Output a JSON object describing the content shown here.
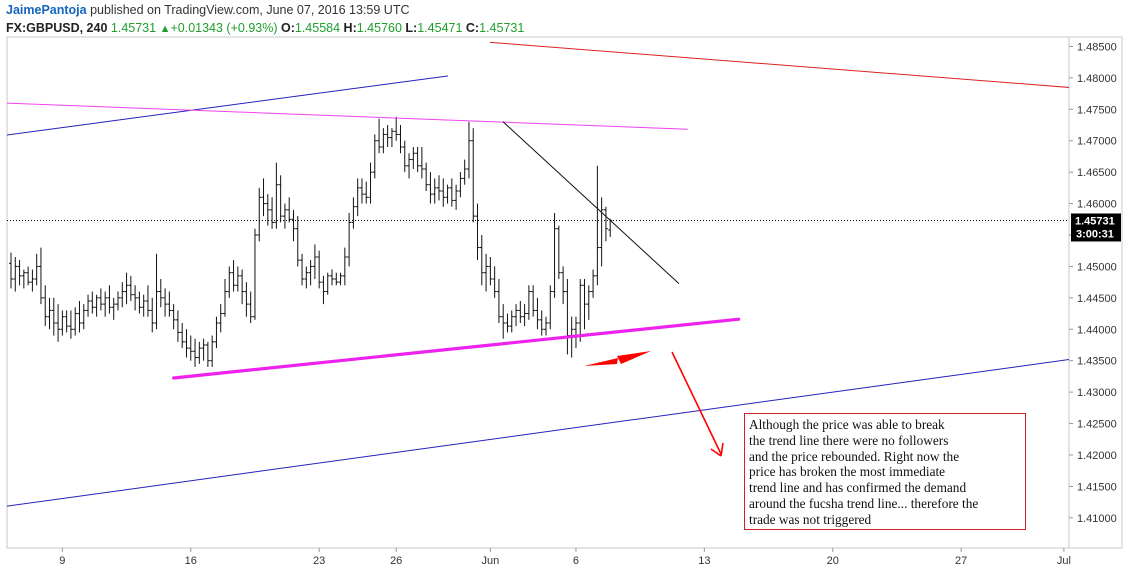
{
  "header": {
    "author": "JaimePantoja",
    "published": " published on TradingView.com, June 07, 2016 13:59 UTC",
    "symbol": "FX:GBPUSD, 240",
    "last": "1.45731",
    "change": "+0.01343 (+0.93%)",
    "o_label": "O:",
    "o": "1.45584",
    "h_label": "H:",
    "h": "1.45760",
    "l_label": "L:",
    "l": "1.45471",
    "c_label": "C:",
    "c": "1.45731"
  },
  "price_marker": {
    "value": "1.45731",
    "countdown": "3:00:31"
  },
  "note": {
    "lines": [
      "Although the price was able to break",
      "the trend line there were no followers",
      "and the price rebounded. Right now the",
      " price has broken the most immediate",
      "trend line and has confirmed the demand",
      "around the fucsha trend line... therefore the",
      " trade was not triggered"
    ]
  },
  "colors": {
    "candles": "#111111",
    "blue_channel": "#2222bb",
    "red_line": "#dd2222",
    "magenta_thin": "#ee44ee",
    "magenta_thick": "#ee22ee",
    "black_trend": "#111111",
    "arrow_red": "#ff0000",
    "marker_bg": "#000000"
  },
  "chart_data": {
    "type": "ohlc",
    "symbol": "FX:GBPUSD",
    "timeframe": "240",
    "y_axis": {
      "ylim": [
        1.4052,
        1.4865
      ],
      "ticks": [
        "1.48500",
        "1.48000",
        "1.47500",
        "1.47000",
        "1.46500",
        "1.46000",
        "1.45500",
        "1.45000",
        "1.44500",
        "1.44000",
        "1.43500",
        "1.43000",
        "1.42500",
        "1.42000",
        "1.41500",
        "1.41000"
      ],
      "tick_values": [
        1.485,
        1.48,
        1.475,
        1.47,
        1.465,
        1.46,
        1.455,
        1.45,
        1.445,
        1.44,
        1.435,
        1.43,
        1.425,
        1.42,
        1.415,
        1.41
      ]
    },
    "x_axis": {
      "ticks": [
        {
          "label": "9",
          "bar": 12
        },
        {
          "label": "16",
          "bar": 42
        },
        {
          "label": "23",
          "bar": 72
        },
        {
          "label": "26",
          "bar": 90
        },
        {
          "label": "Jun",
          "bar": 112
        },
        {
          "label": "6",
          "bar": 132
        },
        {
          "label": "13",
          "bar": 162
        },
        {
          "label": "20",
          "bar": 192
        },
        {
          "label": "27",
          "bar": 222
        },
        {
          "label": "Jul",
          "bar": 246
        }
      ]
    },
    "current_price": 1.45731,
    "bars": [
      [
        1.4505,
        1.4522,
        1.4465,
        1.448
      ],
      [
        1.448,
        1.4515,
        1.446,
        1.45
      ],
      [
        1.45,
        1.451,
        1.447,
        1.4485
      ],
      [
        1.4485,
        1.4495,
        1.4465,
        1.449
      ],
      [
        1.449,
        1.45,
        1.447,
        1.4475
      ],
      [
        1.4475,
        1.4495,
        1.446,
        1.448
      ],
      [
        1.448,
        1.452,
        1.447,
        1.45
      ],
      [
        1.45,
        1.453,
        1.444,
        1.445
      ],
      [
        1.445,
        1.447,
        1.4405,
        1.442
      ],
      [
        1.442,
        1.445,
        1.44,
        1.443
      ],
      [
        1.443,
        1.445,
        1.439,
        1.441
      ],
      [
        1.441,
        1.444,
        1.438,
        1.44
      ],
      [
        1.44,
        1.443,
        1.439,
        1.442
      ],
      [
        1.442,
        1.443,
        1.4395,
        1.4405
      ],
      [
        1.4405,
        1.443,
        1.4385,
        1.44
      ],
      [
        1.44,
        1.4435,
        1.439,
        1.4425
      ],
      [
        1.4425,
        1.4445,
        1.4395,
        1.441
      ],
      [
        1.441,
        1.444,
        1.44,
        1.443
      ],
      [
        1.443,
        1.4455,
        1.442,
        1.4445
      ],
      [
        1.4445,
        1.446,
        1.4425,
        1.4435
      ],
      [
        1.4435,
        1.4455,
        1.442,
        1.445
      ],
      [
        1.445,
        1.4465,
        1.443,
        1.444
      ],
      [
        1.444,
        1.446,
        1.442,
        1.445
      ],
      [
        1.445,
        1.447,
        1.4425,
        1.4435
      ],
      [
        1.4435,
        1.445,
        1.4415,
        1.444
      ],
      [
        1.444,
        1.446,
        1.443,
        1.445
      ],
      [
        1.445,
        1.4475,
        1.4435,
        1.446
      ],
      [
        1.446,
        1.449,
        1.444,
        1.447
      ],
      [
        1.447,
        1.4485,
        1.4445,
        1.4455
      ],
      [
        1.4455,
        1.447,
        1.443,
        1.445
      ],
      [
        1.445,
        1.446,
        1.4425,
        1.4435
      ],
      [
        1.4435,
        1.4455,
        1.442,
        1.4445
      ],
      [
        1.4445,
        1.447,
        1.442,
        1.443
      ],
      [
        1.443,
        1.445,
        1.4395,
        1.441
      ],
      [
        1.441,
        1.452,
        1.44,
        1.446
      ],
      [
        1.446,
        1.448,
        1.4435,
        1.445
      ],
      [
        1.445,
        1.4465,
        1.442,
        1.444
      ],
      [
        1.444,
        1.446,
        1.442,
        1.443
      ],
      [
        1.443,
        1.444,
        1.44,
        1.4415
      ],
      [
        1.4415,
        1.443,
        1.438,
        1.4395
      ],
      [
        1.4395,
        1.441,
        1.437,
        1.438
      ],
      [
        1.438,
        1.44,
        1.4355,
        1.437
      ],
      [
        1.437,
        1.439,
        1.435,
        1.4365
      ],
      [
        1.4365,
        1.4385,
        1.434,
        1.4355
      ],
      [
        1.4355,
        1.438,
        1.4345,
        1.437
      ],
      [
        1.437,
        1.4385,
        1.435,
        1.4375
      ],
      [
        1.4375,
        1.438,
        1.434,
        1.435
      ],
      [
        1.435,
        1.439,
        1.434,
        1.438
      ],
      [
        1.438,
        1.442,
        1.437,
        1.441
      ],
      [
        1.441,
        1.444,
        1.4395,
        1.4425
      ],
      [
        1.4425,
        1.448,
        1.442,
        1.446
      ],
      [
        1.446,
        1.45,
        1.445,
        1.449
      ],
      [
        1.449,
        1.451,
        1.446,
        1.447
      ],
      [
        1.447,
        1.45,
        1.446,
        1.4485
      ],
      [
        1.4485,
        1.4495,
        1.444,
        1.446
      ],
      [
        1.446,
        1.4475,
        1.442,
        1.444
      ],
      [
        1.444,
        1.446,
        1.441,
        1.442
      ],
      [
        1.442,
        1.456,
        1.4415,
        1.455
      ],
      [
        1.455,
        1.4625,
        1.454,
        1.461
      ],
      [
        1.461,
        1.464,
        1.458,
        1.46
      ],
      [
        1.46,
        1.4615,
        1.4565,
        1.459
      ],
      [
        1.459,
        1.461,
        1.456,
        1.457
      ],
      [
        1.457,
        1.4665,
        1.456,
        1.463
      ],
      [
        1.463,
        1.4645,
        1.457,
        1.458
      ],
      [
        1.458,
        1.46,
        1.456,
        1.459
      ],
      [
        1.459,
        1.461,
        1.457,
        1.4575
      ],
      [
        1.4575,
        1.459,
        1.454,
        1.456
      ],
      [
        1.456,
        1.458,
        1.45,
        1.451
      ],
      [
        1.451,
        1.452,
        1.447,
        1.448
      ],
      [
        1.448,
        1.45,
        1.4465,
        1.449
      ],
      [
        1.449,
        1.451,
        1.447,
        1.45
      ],
      [
        1.45,
        1.4535,
        1.448,
        1.4515
      ],
      [
        1.4515,
        1.4525,
        1.4465,
        1.4475
      ],
      [
        1.4475,
        1.4485,
        1.444,
        1.446
      ],
      [
        1.446,
        1.449,
        1.4455,
        1.4485
      ],
      [
        1.4485,
        1.4495,
        1.447,
        1.448
      ],
      [
        1.448,
        1.449,
        1.447,
        1.4475
      ],
      [
        1.4475,
        1.449,
        1.447,
        1.4485
      ],
      [
        1.4485,
        1.453,
        1.447,
        1.4515
      ],
      [
        1.4515,
        1.4585,
        1.45,
        1.457
      ],
      [
        1.457,
        1.461,
        1.456,
        1.4595
      ],
      [
        1.4595,
        1.464,
        1.458,
        1.4625
      ],
      [
        1.4625,
        1.464,
        1.46,
        1.4615
      ],
      [
        1.4615,
        1.4635,
        1.46,
        1.461
      ],
      [
        1.461,
        1.4665,
        1.46,
        1.465
      ],
      [
        1.465,
        1.471,
        1.464,
        1.47
      ],
      [
        1.47,
        1.4735,
        1.468,
        1.469
      ],
      [
        1.469,
        1.472,
        1.468,
        1.471
      ],
      [
        1.471,
        1.4725,
        1.469,
        1.4705
      ],
      [
        1.4705,
        1.472,
        1.469,
        1.4715
      ],
      [
        1.4715,
        1.4738,
        1.47,
        1.471
      ],
      [
        1.471,
        1.4725,
        1.468,
        1.469
      ],
      [
        1.469,
        1.47,
        1.465,
        1.466
      ],
      [
        1.466,
        1.468,
        1.464,
        1.467
      ],
      [
        1.467,
        1.469,
        1.4655,
        1.468
      ],
      [
        1.468,
        1.469,
        1.465,
        1.466
      ],
      [
        1.466,
        1.469,
        1.464,
        1.4655
      ],
      [
        1.4655,
        1.4665,
        1.462,
        1.463
      ],
      [
        1.463,
        1.465,
        1.46,
        1.4615
      ],
      [
        1.4615,
        1.464,
        1.46,
        1.4625
      ],
      [
        1.4625,
        1.4645,
        1.4605,
        1.462
      ],
      [
        1.462,
        1.464,
        1.4595,
        1.461
      ],
      [
        1.461,
        1.463,
        1.46,
        1.4625
      ],
      [
        1.4625,
        1.464,
        1.4595,
        1.4605
      ],
      [
        1.4605,
        1.463,
        1.459,
        1.462
      ],
      [
        1.462,
        1.465,
        1.461,
        1.464
      ],
      [
        1.464,
        1.467,
        1.463,
        1.4655
      ],
      [
        1.4655,
        1.473,
        1.464,
        1.47
      ],
      [
        1.47,
        1.472,
        1.457,
        1.458
      ],
      [
        1.458,
        1.46,
        1.451,
        1.453
      ],
      [
        1.453,
        1.455,
        1.447,
        1.449
      ],
      [
        1.449,
        1.452,
        1.446,
        1.45
      ],
      [
        1.45,
        1.4515,
        1.447,
        1.448
      ],
      [
        1.448,
        1.45,
        1.445,
        1.446
      ],
      [
        1.446,
        1.448,
        1.441,
        1.442
      ],
      [
        1.442,
        1.444,
        1.4385,
        1.441
      ],
      [
        1.441,
        1.4425,
        1.4395,
        1.4405
      ],
      [
        1.4405,
        1.443,
        1.4395,
        1.442
      ],
      [
        1.442,
        1.444,
        1.4405,
        1.443
      ],
      [
        1.443,
        1.4445,
        1.441,
        1.442
      ],
      [
        1.442,
        1.444,
        1.4405,
        1.4425
      ],
      [
        1.4425,
        1.447,
        1.4415,
        1.446
      ],
      [
        1.446,
        1.447,
        1.442,
        1.443
      ],
      [
        1.443,
        1.445,
        1.44,
        1.4415
      ],
      [
        1.4415,
        1.443,
        1.439,
        1.44
      ],
      [
        1.44,
        1.442,
        1.439,
        1.441
      ],
      [
        1.441,
        1.447,
        1.44,
        1.446
      ],
      [
        1.446,
        1.4585,
        1.445,
        1.456
      ],
      [
        1.456,
        1.4565,
        1.448,
        1.449
      ],
      [
        1.449,
        1.45,
        1.444,
        1.446
      ],
      [
        1.446,
        1.448,
        1.436,
        1.439
      ],
      [
        1.439,
        1.442,
        1.4355,
        1.44
      ],
      [
        1.44,
        1.442,
        1.437,
        1.441
      ],
      [
        1.441,
        1.448,
        1.438,
        1.447
      ],
      [
        1.447,
        1.448,
        1.44,
        1.444
      ],
      [
        1.444,
        1.447,
        1.4415,
        1.446
      ],
      [
        1.446,
        1.4495,
        1.445,
        1.4485
      ],
      [
        1.4485,
        1.466,
        1.447,
        1.453
      ],
      [
        1.453,
        1.461,
        1.45,
        1.459
      ],
      [
        1.459,
        1.4595,
        1.454,
        1.456
      ],
      [
        1.4558,
        1.4576,
        1.4547,
        1.4573
      ]
    ],
    "lines": [
      {
        "name": "red",
        "x": [
          112,
          275
        ],
        "y": [
          1.48565,
          1.477
        ]
      },
      {
        "name": "blue-upper",
        "x": [
          -1,
          102
        ],
        "y": [
          1.4709,
          1.4803
        ]
      },
      {
        "name": "blue-lower",
        "x": [
          -1,
          267
        ],
        "y": [
          1.41185,
          1.43705
        ]
      },
      {
        "name": "magenta-thin",
        "x": [
          -1,
          158
        ],
        "y": [
          1.47598,
          1.47183
        ]
      },
      {
        "name": "magenta-thick",
        "x": [
          38,
          170
        ],
        "y": [
          1.43225,
          1.4416
        ]
      },
      {
        "name": "black-trend",
        "x": [
          115,
          156
        ],
        "y": [
          1.473,
          1.4473
        ]
      }
    ]
  }
}
